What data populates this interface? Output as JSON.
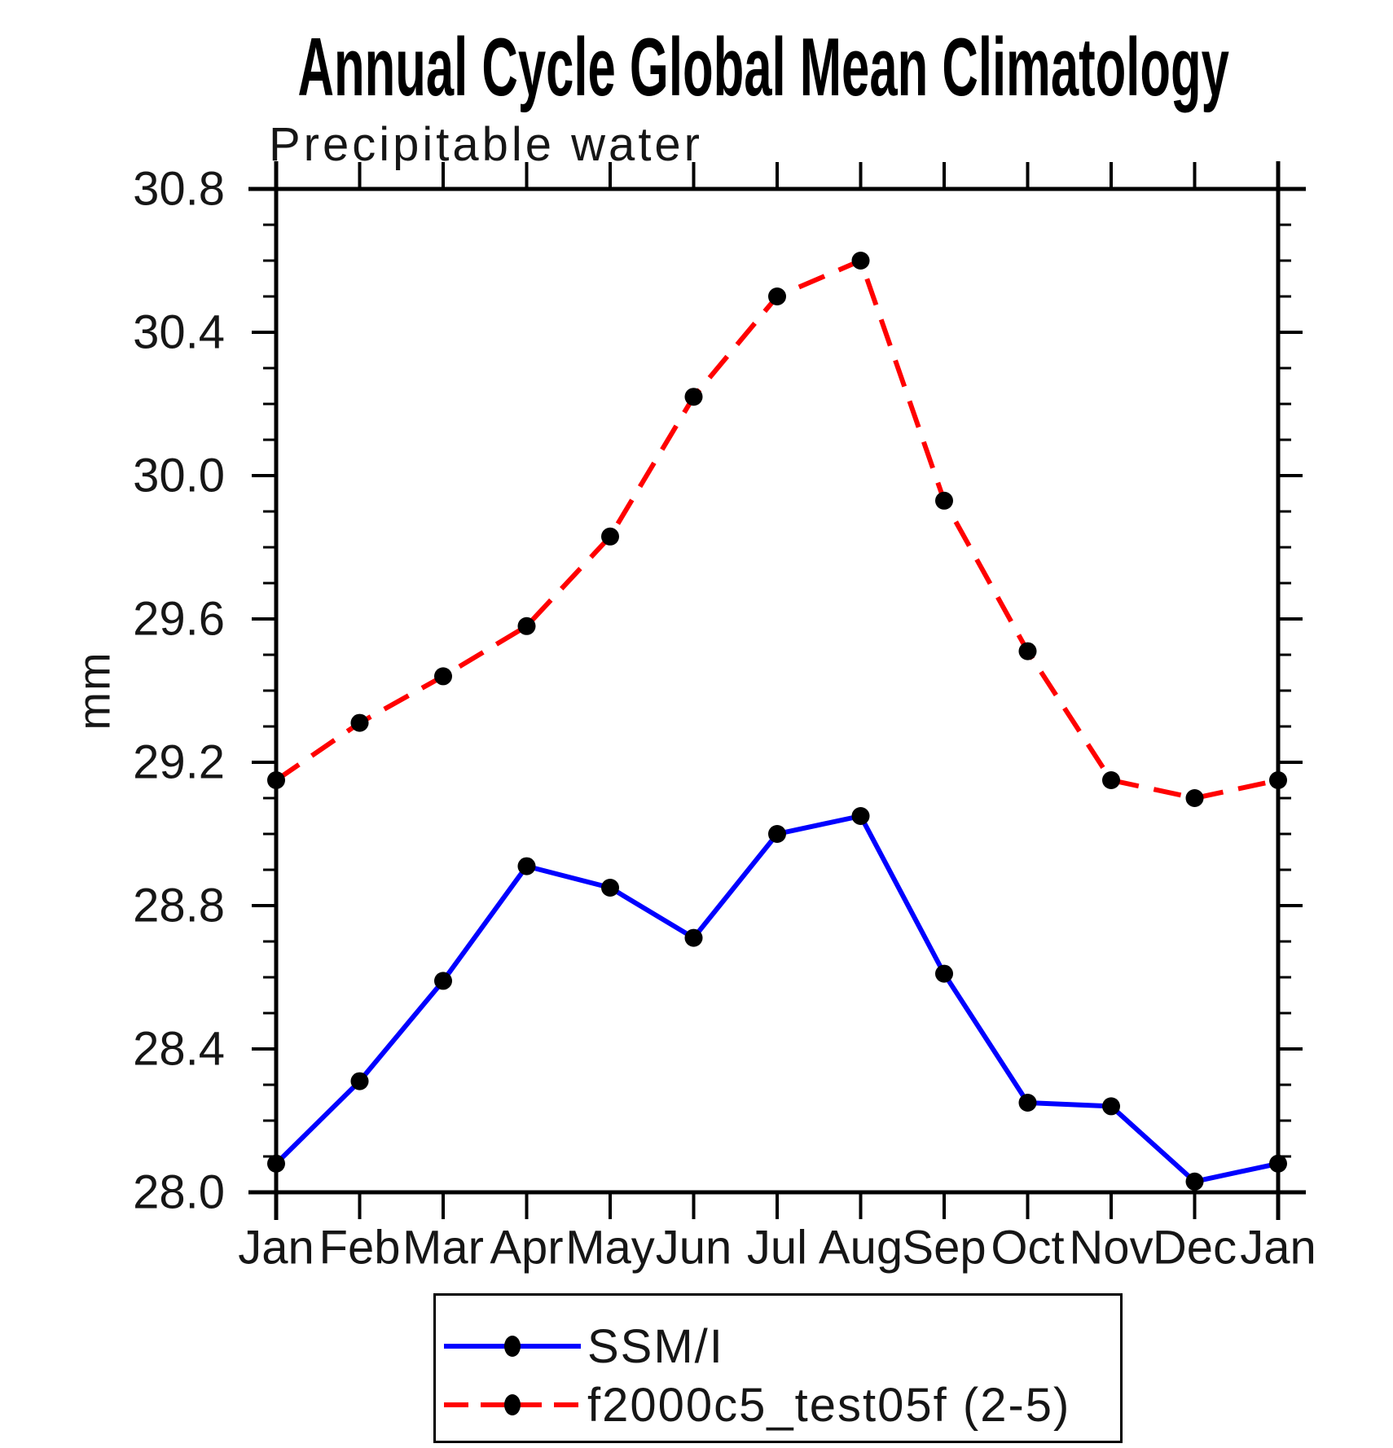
{
  "chart_data": {
    "type": "line",
    "title": "Annual Cycle Global Mean Climatology",
    "subtitle": "Precipitable water",
    "ylabel": "mm",
    "xlabel": "",
    "categories": [
      "Jan",
      "Feb",
      "Mar",
      "Apr",
      "May",
      "Jun",
      "Jul",
      "Aug",
      "Sep",
      "Oct",
      "Nov",
      "Dec",
      "Jan"
    ],
    "series": [
      {
        "name": "SSM/I",
        "line_style": "solid",
        "color": "#0000ff",
        "marker": "filled-circle",
        "marker_color": "#000000",
        "values": [
          28.08,
          28.31,
          28.59,
          28.91,
          28.85,
          28.71,
          29.0,
          29.05,
          28.61,
          28.25,
          28.24,
          28.03,
          28.08
        ]
      },
      {
        "name": "f2000c5_test05f (2-5)",
        "line_style": "dashed",
        "color": "#ff0000",
        "marker": "filled-circle",
        "marker_color": "#000000",
        "values": [
          29.15,
          29.31,
          29.44,
          29.58,
          29.83,
          30.22,
          30.5,
          30.6,
          29.93,
          29.51,
          29.15,
          29.1,
          29.15
        ]
      }
    ],
    "ylim": [
      28.0,
      30.8
    ],
    "ytick_major_step": 0.4,
    "ytick_minor_step": 0.1,
    "ytick_labels": [
      "28.0",
      "28.4",
      "28.8",
      "29.2",
      "29.6",
      "30.0",
      "30.4",
      "30.8"
    ],
    "grid": false,
    "legend_position": "bottom-center",
    "axis_color": "#000000",
    "background_color": "#ffffff"
  }
}
